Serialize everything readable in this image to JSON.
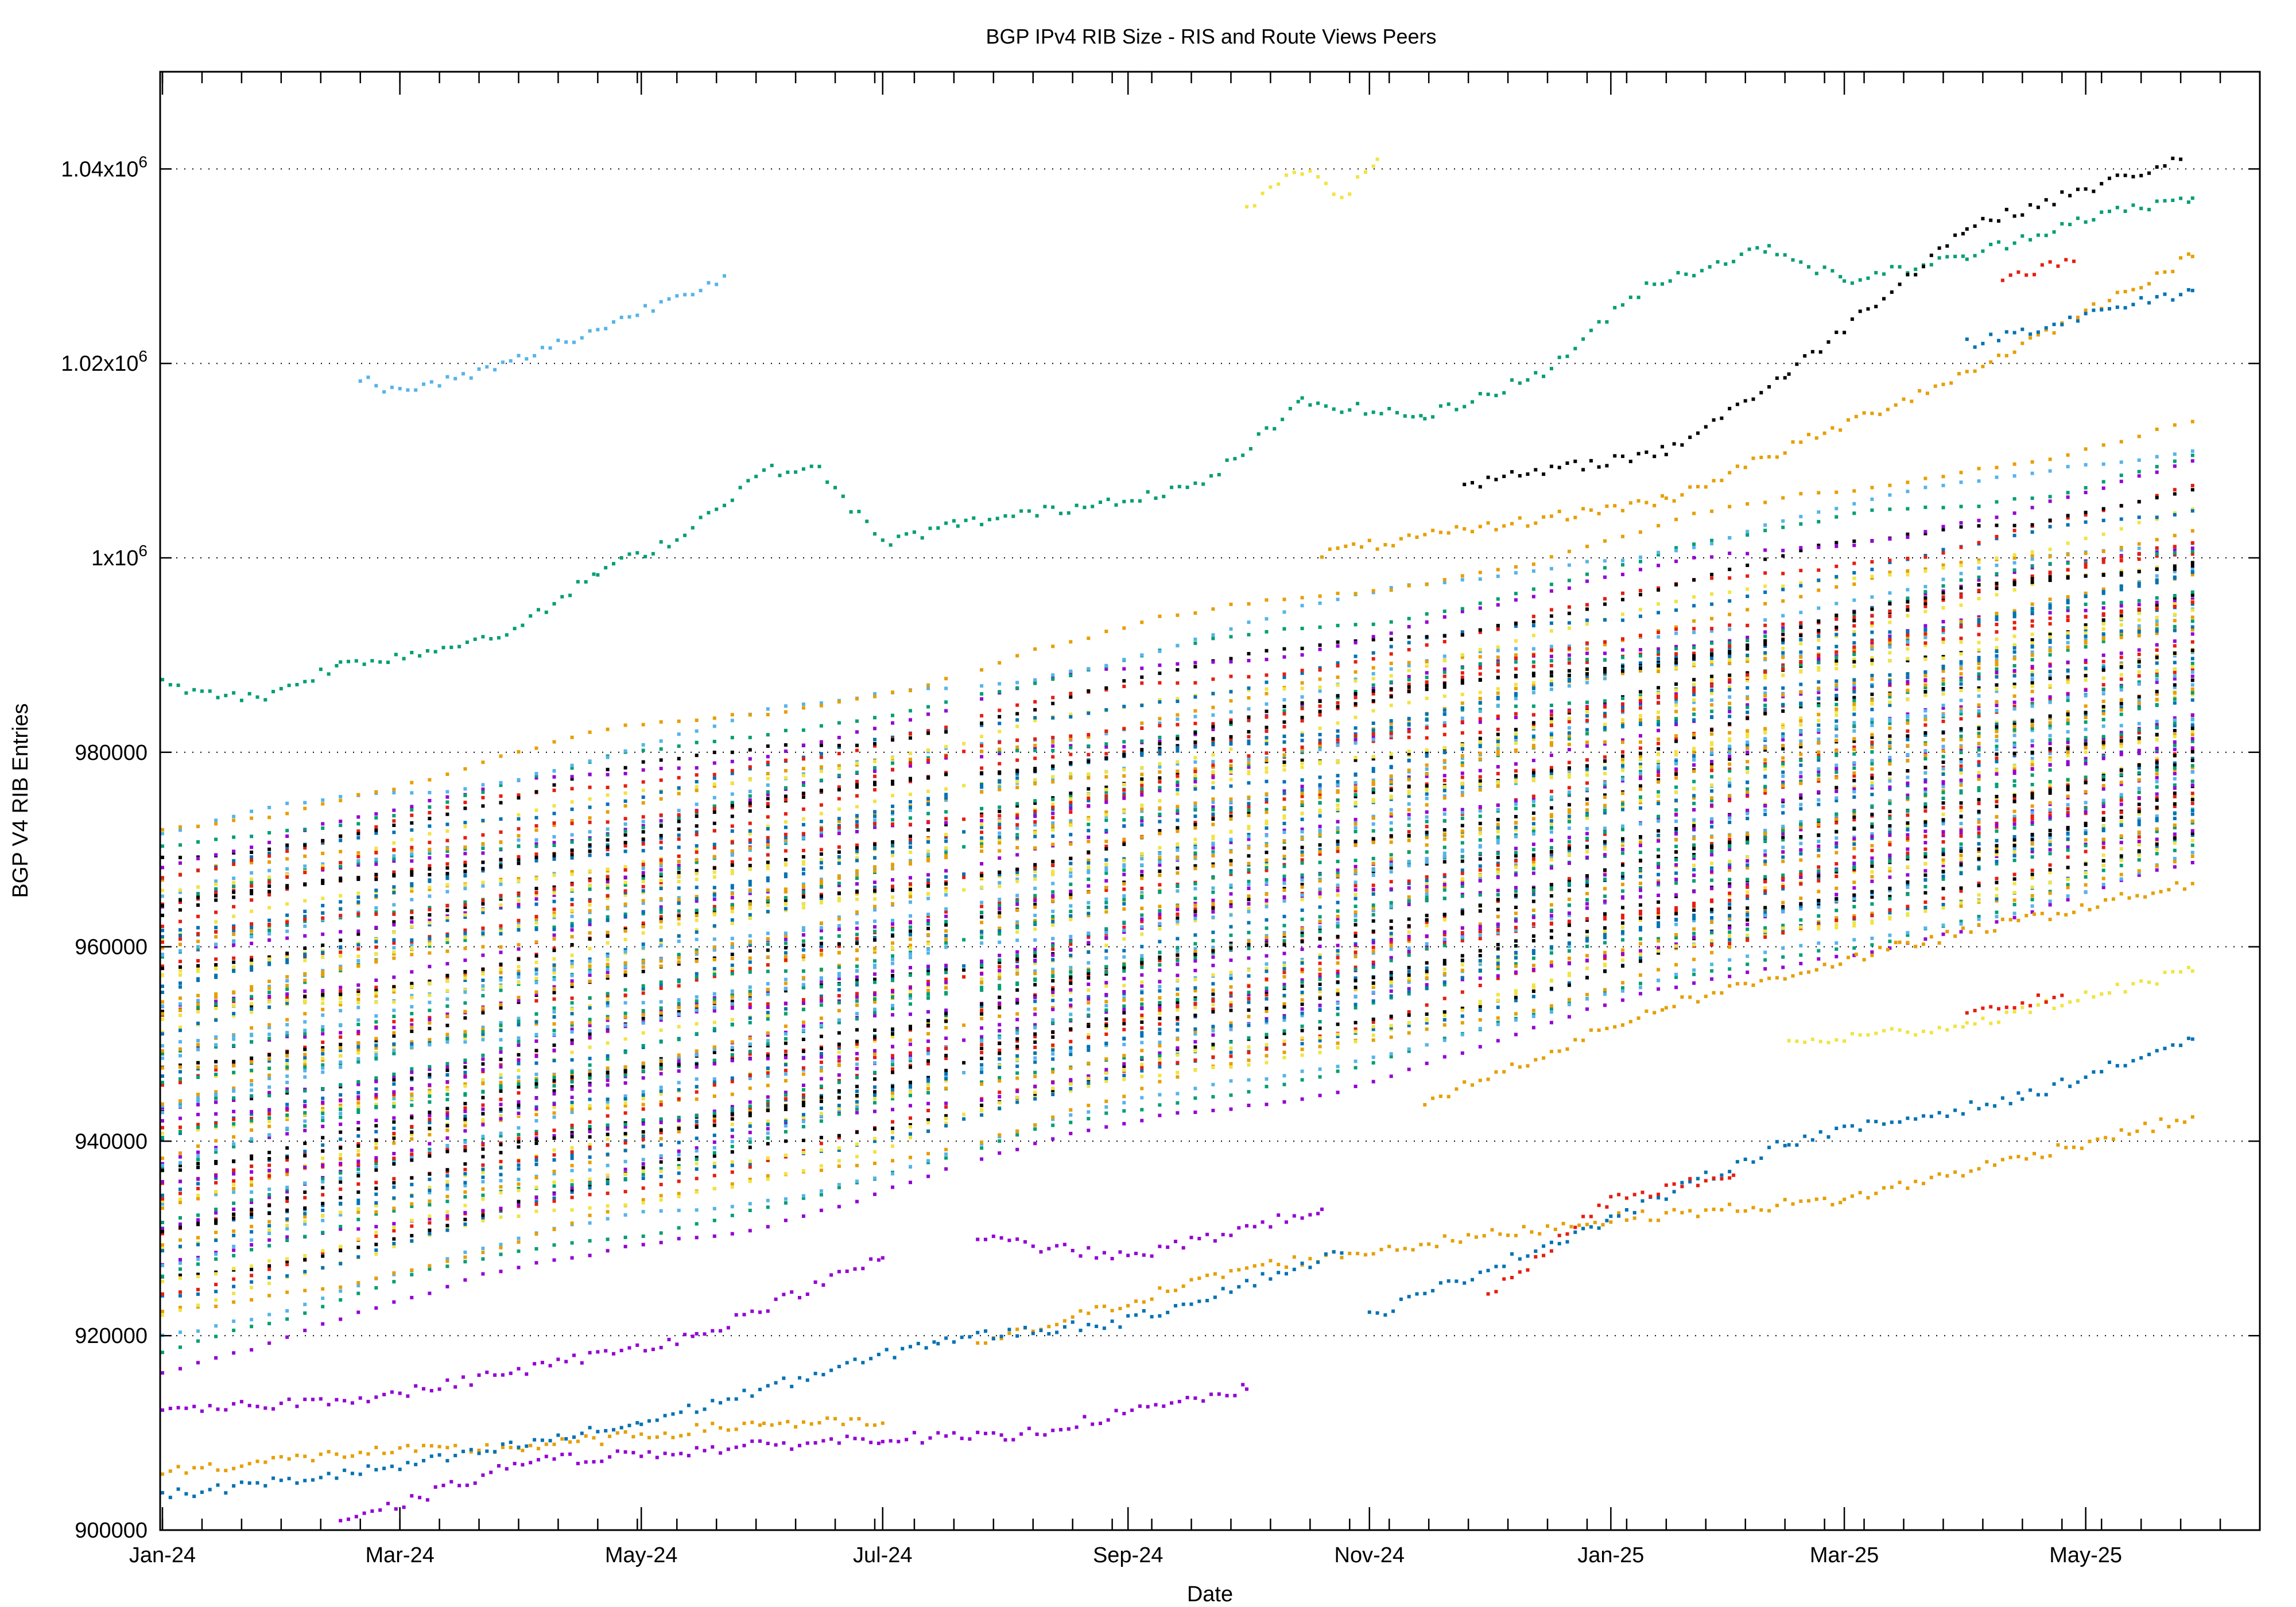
{
  "chart_data": {
    "type": "scatter",
    "title": "BGP IPv4 RIB Size - RIS and Route Views Peers",
    "xlabel": "Date",
    "ylabel": "BGP V4 RIB Entries",
    "xlim": [
      "2024-01-01",
      "2025-06-14"
    ],
    "ylim": [
      900000,
      1050000
    ],
    "grid": true,
    "legend": "none",
    "x_ticks": [
      {
        "date": "2024-01-01",
        "label": "Jan-24"
      },
      {
        "date": "2024-03-01",
        "label": "Mar-24"
      },
      {
        "date": "2024-05-01",
        "label": "May-24"
      },
      {
        "date": "2024-07-01",
        "label": "Jul-24"
      },
      {
        "date": "2024-09-01",
        "label": "Sep-24"
      },
      {
        "date": "2024-11-01",
        "label": "Nov-24"
      },
      {
        "date": "2025-01-01",
        "label": "Jan-25"
      },
      {
        "date": "2025-03-01",
        "label": "Mar-25"
      },
      {
        "date": "2025-05-01",
        "label": "May-25"
      }
    ],
    "y_ticks": [
      {
        "value": 900000,
        "label": "900000"
      },
      {
        "value": 920000,
        "label": "920000"
      },
      {
        "value": 940000,
        "label": "940000"
      },
      {
        "value": 960000,
        "label": "960000"
      },
      {
        "value": 980000,
        "label": "980000"
      },
      {
        "value": 1000000,
        "label": "1x10",
        "exp": "6"
      },
      {
        "value": 1020000,
        "label": "1.02x10",
        "exp": "6"
      },
      {
        "value": 1040000,
        "label": "1.04x10",
        "exp": "6"
      }
    ],
    "palette": [
      "#9400d3",
      "#009e73",
      "#56b4e9",
      "#e69f00",
      "#f0e442",
      "#0072b2",
      "#e51e10",
      "#000000"
    ],
    "notable_series": [
      {
        "name": "peer-green-top",
        "color": "#009e73",
        "points": [
          [
            "2024-01-01",
            987000
          ],
          [
            "2024-01-25",
            985500
          ],
          [
            "2024-02-15",
            989000
          ],
          [
            "2024-03-10",
            990500
          ],
          [
            "2024-04-01",
            993000
          ],
          [
            "2024-04-20",
            998500
          ],
          [
            "2024-05-10",
            1002000
          ],
          [
            "2024-06-01",
            1009000
          ],
          [
            "2024-06-15",
            1009000
          ],
          [
            "2024-07-01",
            1001500
          ],
          [
            "2024-07-20",
            1003500
          ],
          [
            "2024-08-15",
            1005000
          ],
          [
            "2024-09-20",
            1007500
          ],
          [
            "2024-10-15",
            1016000
          ],
          [
            "2024-11-15",
            1014500
          ],
          [
            "2024-12-15",
            1019000
          ],
          [
            "2025-01-10",
            1028000
          ],
          [
            "2025-02-10",
            1032000
          ],
          [
            "2025-03-01",
            1028500
          ],
          [
            "2025-04-01",
            1031000
          ],
          [
            "2025-05-01",
            1035000
          ],
          [
            "2025-05-28",
            1037000
          ]
        ]
      },
      {
        "name": "peer-lightblue-upper",
        "color": "#56b4e9",
        "points": [
          [
            "2024-02-20",
            1018500
          ],
          [
            "2024-03-01",
            1017000
          ],
          [
            "2024-03-25",
            1019500
          ],
          [
            "2024-04-20",
            1023500
          ],
          [
            "2024-05-22",
            1029000
          ]
        ]
      },
      {
        "name": "peer-black-upper",
        "color": "#000000",
        "points": [
          [
            "2024-11-25",
            1007500
          ],
          [
            "2025-01-15",
            1011000
          ],
          [
            "2025-02-15",
            1019000
          ],
          [
            "2025-04-01",
            1034000
          ],
          [
            "2025-05-25",
            1041000
          ]
        ]
      },
      {
        "name": "peer-yellow-oct",
        "color": "#f0e442",
        "points": [
          [
            "2024-10-01",
            1036000
          ],
          [
            "2024-10-15",
            1040000
          ],
          [
            "2024-10-25",
            1037000
          ],
          [
            "2024-11-03",
            1041000
          ]
        ]
      },
      {
        "name": "peer-red-apr25",
        "color": "#e51e10",
        "points": [
          [
            "2025-04-10",
            1029000
          ],
          [
            "2025-04-28",
            1030500
          ]
        ]
      },
      {
        "name": "peer-orange-upper25",
        "color": "#e69f00",
        "points": [
          [
            "2024-10-20",
            1000500
          ],
          [
            "2025-01-15",
            1006000
          ],
          [
            "2025-04-01",
            1019000
          ],
          [
            "2025-05-28",
            1031000
          ]
        ]
      },
      {
        "name": "peer-blue-upper25",
        "color": "#0072b2",
        "points": [
          [
            "2025-04-01",
            1022000
          ],
          [
            "2025-05-28",
            1027500
          ]
        ]
      },
      {
        "name": "peer-orange-low",
        "color": "#e69f00",
        "points": [
          [
            "2024-01-01",
            906000
          ],
          [
            "2024-02-20",
            908000
          ],
          [
            "2024-04-01",
            908500
          ],
          [
            "2024-06-01",
            911000
          ],
          [
            "2024-07-01",
            911000
          ]
        ]
      },
      {
        "name": "peer-orange-low2",
        "color": "#e69f00",
        "points": [
          [
            "2024-07-25",
            919000
          ],
          [
            "2024-10-01",
            927000
          ],
          [
            "2025-01-01",
            932000
          ],
          [
            "2025-03-01",
            934000
          ],
          [
            "2025-05-28",
            942500
          ]
        ]
      },
      {
        "name": "peer-blue-low",
        "color": "#0072b2",
        "points": [
          [
            "2024-01-01",
            903500
          ],
          [
            "2024-03-01",
            906500
          ],
          [
            "2024-05-01",
            911000
          ],
          [
            "2024-07-15",
            919500
          ],
          [
            "2024-09-01",
            921500
          ],
          [
            "2024-10-25",
            928500
          ]
        ]
      },
      {
        "name": "peer-blue-low2",
        "color": "#0072b2",
        "points": [
          [
            "2024-11-01",
            922000
          ],
          [
            "2025-01-01",
            932000
          ],
          [
            "2025-02-15",
            940000
          ],
          [
            "2025-04-15",
            944500
          ],
          [
            "2025-05-28",
            950500
          ]
        ]
      },
      {
        "name": "peer-purple-low",
        "color": "#9400d3",
        "points": [
          [
            "2024-02-15",
            900500
          ],
          [
            "2024-04-01",
            907000
          ],
          [
            "2024-07-01",
            909500
          ],
          [
            "2024-08-01",
            909500
          ],
          [
            "2024-10-01",
            914500
          ]
        ]
      },
      {
        "name": "peer-red-low",
        "color": "#e51e10",
        "points": [
          [
            "2024-12-01",
            924000
          ],
          [
            "2025-01-01",
            934000
          ],
          [
            "2025-02-01",
            936500
          ]
        ]
      },
      {
        "name": "peer-yellow-low",
        "color": "#f0e442",
        "points": [
          [
            "2025-02-15",
            950000
          ],
          [
            "2025-04-01",
            952000
          ],
          [
            "2025-05-28",
            957500
          ]
        ]
      },
      {
        "name": "peer-red-mid",
        "color": "#e51e10",
        "points": [
          [
            "2025-04-01",
            953000
          ],
          [
            "2025-04-25",
            955000
          ]
        ]
      },
      {
        "name": "peer-orange-mid",
        "color": "#e69f00",
        "points": [
          [
            "2024-11-15",
            944000
          ],
          [
            "2025-01-15",
            954000
          ],
          [
            "2025-03-15",
            960000
          ],
          [
            "2025-05-28",
            966500
          ]
        ]
      },
      {
        "name": "peer-purple-mid",
        "color": "#9400d3",
        "points": [
          [
            "2024-07-25",
            930000
          ],
          [
            "2024-09-01",
            928000
          ],
          [
            "2024-10-20",
            933000
          ]
        ]
      },
      {
        "name": "peer-purple-left",
        "color": "#9400d3",
        "points": [
          [
            "2024-01-01",
            912000
          ],
          [
            "2024-03-01",
            914000
          ],
          [
            "2024-05-15",
            920000
          ],
          [
            "2024-07-01",
            928000
          ]
        ]
      }
    ],
    "band_series": {
      "start_date": "2024-01-01",
      "end_date": "2025-05-28",
      "series": [
        [
          917000,
          968000
        ],
        [
          919000,
          969000
        ],
        [
          920500,
          968500
        ],
        [
          922000,
          970000
        ],
        [
          923000,
          971000
        ],
        [
          924000,
          970500
        ],
        [
          925000,
          972000
        ],
        [
          925500,
          971500
        ],
        [
          926500,
          973000
        ],
        [
          927000,
          972500
        ],
        [
          928000,
          974000
        ],
        [
          928500,
          973500
        ],
        [
          929000,
          975000
        ],
        [
          930000,
          974500
        ],
        [
          930500,
          976000
        ],
        [
          931000,
          975500
        ],
        [
          932000,
          977000
        ],
        [
          932500,
          976500
        ],
        [
          933000,
          978000
        ],
        [
          934000,
          977500
        ],
        [
          934500,
          979000
        ],
        [
          935000,
          978500
        ],
        [
          936000,
          980000
        ],
        [
          936500,
          979500
        ],
        [
          937000,
          981000
        ],
        [
          938000,
          980500
        ],
        [
          938500,
          982000
        ],
        [
          939000,
          981500
        ],
        [
          940000,
          983000
        ],
        [
          940500,
          982500
        ],
        [
          941000,
          984000
        ],
        [
          942000,
          983500
        ],
        [
          942500,
          985000
        ],
        [
          943000,
          984500
        ],
        [
          944000,
          986000
        ],
        [
          944500,
          985500
        ],
        [
          945000,
          987000
        ],
        [
          946000,
          986500
        ],
        [
          946500,
          988000
        ],
        [
          947000,
          987500
        ],
        [
          948000,
          989000
        ],
        [
          948500,
          988500
        ],
        [
          949000,
          990000
        ],
        [
          950000,
          989500
        ],
        [
          950500,
          991000
        ],
        [
          951000,
          990500
        ],
        [
          952000,
          992000
        ],
        [
          952500,
          991500
        ],
        [
          953000,
          993000
        ],
        [
          954000,
          992500
        ],
        [
          954500,
          994000
        ],
        [
          955000,
          993500
        ],
        [
          956000,
          995000
        ],
        [
          956500,
          994500
        ],
        [
          957000,
          996000
        ],
        [
          958000,
          995500
        ],
        [
          958500,
          997000
        ],
        [
          959000,
          996500
        ],
        [
          960000,
          998000
        ],
        [
          960500,
          997500
        ],
        [
          961000,
          999000
        ],
        [
          962000,
          998500
        ],
        [
          962500,
          1000000
        ],
        [
          963000,
          999500
        ],
        [
          964000,
          1001000
        ],
        [
          964500,
          1000500
        ],
        [
          965000,
          1002000
        ],
        [
          966000,
          1003000
        ],
        [
          966500,
          1004000
        ],
        [
          967000,
          1005000
        ],
        [
          968000,
          1006000
        ],
        [
          968500,
          1007500
        ],
        [
          969000,
          1009000
        ],
        [
          970000,
          1010500
        ],
        [
          971000,
          1012000
        ],
        [
          972000,
          1014000
        ],
        [
          926000,
          970000
        ],
        [
          929500,
          973000
        ],
        [
          933500,
          976000
        ],
        [
          937500,
          979000
        ],
        [
          941500,
          982000
        ],
        [
          945500,
          986000
        ],
        [
          949500,
          989000
        ],
        [
          953500,
          992000
        ],
        [
          957500,
          995000
        ],
        [
          961500,
          998000
        ],
        [
          965500,
          1001000
        ],
        [
          931500,
          974000
        ],
        [
          935500,
          977000
        ],
        [
          939500,
          980000
        ],
        [
          943500,
          983000
        ],
        [
          947500,
          987000
        ],
        [
          951500,
          990000
        ],
        [
          955500,
          993000
        ],
        [
          959500,
          996000
        ],
        [
          963500,
          1000000
        ]
      ]
    }
  }
}
